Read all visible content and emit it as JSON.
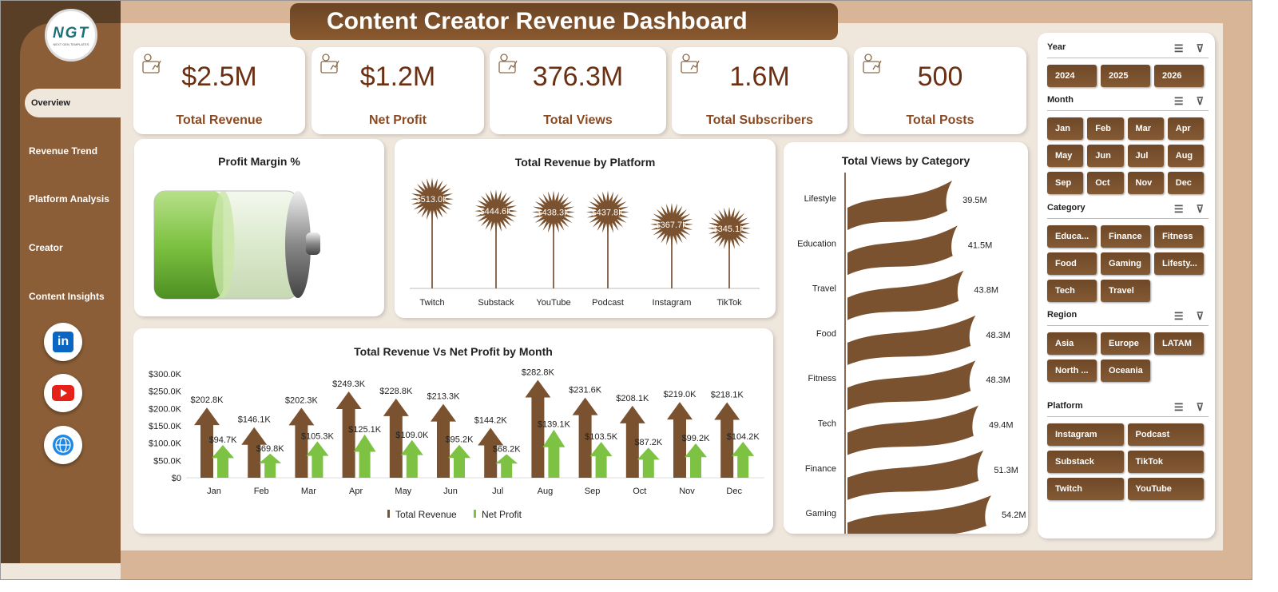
{
  "title": "Content Creator Revenue Dashboard",
  "logo": {
    "text": "NGT",
    "subtext": "NEXT GEN TEMPLATES"
  },
  "nav": [
    {
      "label": "Overview",
      "active": true
    },
    {
      "label": "Revenue Trend"
    },
    {
      "label": "Platform Analysis"
    },
    {
      "label": "Creator"
    },
    {
      "label": "Content Insights"
    }
  ],
  "social": [
    {
      "icon": "linkedin-icon",
      "label": "in",
      "color": "#0a66c2"
    },
    {
      "icon": "youtube-icon",
      "color": "#e62117"
    },
    {
      "icon": "globe-icon",
      "color": "#1e88e5"
    }
  ],
  "kpis": [
    {
      "value": "$2.5M",
      "label": "Total Revenue",
      "icon": "money-icon"
    },
    {
      "value": "$1.2M",
      "label": "Net Profit",
      "icon": "growth-chart-icon"
    },
    {
      "value": "376.3M",
      "label": "Total Views",
      "icon": "analytics-icon"
    },
    {
      "value": "1.6M",
      "label": "Total Subscribers",
      "icon": "clipboard-icon"
    },
    {
      "value": "500",
      "label": "Total Posts",
      "icon": "report-icon"
    }
  ],
  "profit_margin": {
    "title": "Profit Margin %",
    "fill_fraction": 0.48,
    "fill_color": "#7dc242"
  },
  "chart_data": [
    {
      "type": "bar",
      "title": "Total Revenue  by Platform",
      "categories": [
        "Twitch",
        "Substack",
        "YouTube",
        "Podcast",
        "Instagram",
        "TikTok"
      ],
      "values": [
        513.0,
        444.6,
        438.3,
        437.8,
        367.7,
        345.1
      ],
      "labels": [
        "$513.0K",
        "$444.6K",
        "$438.3K",
        "$437.8K",
        "$367.7K",
        "$345.1K"
      ],
      "unit": "K",
      "color": "#7a5230"
    },
    {
      "type": "bar",
      "orientation": "horizontal",
      "title": "Total Views by Category",
      "categories": [
        "Lifestyle",
        "Education",
        "Travel",
        "Food",
        "Fitness",
        "Tech",
        "Finance",
        "Gaming"
      ],
      "values": [
        39.5,
        41.5,
        43.8,
        48.3,
        48.3,
        49.4,
        51.3,
        54.2
      ],
      "labels": [
        "39.5M",
        "41.5M",
        "43.8M",
        "48.3M",
        "48.3M",
        "49.4M",
        "51.3M",
        "54.2M"
      ],
      "color": "#7a5230"
    },
    {
      "type": "bar",
      "title": "Total Revenue  Vs Net Profit  by Month",
      "categories": [
        "Jan",
        "Feb",
        "Mar",
        "Apr",
        "May",
        "Jun",
        "Jul",
        "Aug",
        "Sep",
        "Oct",
        "Nov",
        "Dec"
      ],
      "yticks": [
        "$0",
        "$50.0K",
        "$100.0K",
        "$150.0K",
        "$200.0K",
        "$250.0K",
        "$300.0K"
      ],
      "ylim": [
        0,
        300
      ],
      "legend": "bottom",
      "series": [
        {
          "name": "Total Revenue",
          "color": "#7a5230",
          "values": [
            202.8,
            146.1,
            202.3,
            249.3,
            228.8,
            213.3,
            144.2,
            282.8,
            231.6,
            208.1,
            219.0,
            218.1
          ],
          "labels": [
            "$202.8K",
            "$146.1K",
            "$202.3K",
            "$249.3K",
            "$228.8K",
            "$213.3K",
            "$144.2K",
            "$282.8K",
            "$231.6K",
            "$208.1K",
            "$219.0K",
            "$218.1K"
          ]
        },
        {
          "name": "Net Profit",
          "color": "#7dc242",
          "values": [
            94.7,
            69.8,
            105.3,
            125.1,
            109.0,
            95.2,
            68.2,
            139.1,
            103.5,
            87.2,
            99.2,
            104.2
          ],
          "labels": [
            "$94.7K",
            "$69.8K",
            "$105.3K",
            "$125.1K",
            "$109.0K",
            "$95.2K",
            "$68.2K",
            "$139.1K",
            "$103.5K",
            "$87.2K",
            "$99.2K",
            "$104.2K"
          ]
        }
      ]
    }
  ],
  "filters": [
    {
      "title": "Year",
      "cols": 3,
      "items": [
        "2024",
        "2025",
        "2026"
      ]
    },
    {
      "title": "Month",
      "cols": 4,
      "items": [
        "Jan",
        "Feb",
        "Mar",
        "Apr",
        "May",
        "Jun",
        "Jul",
        "Aug",
        "Sep",
        "Oct",
        "Nov",
        "Dec"
      ]
    },
    {
      "title": "Category",
      "cols": 3,
      "items": [
        "Educa...",
        "Finance",
        "Fitness",
        "Food",
        "Gaming",
        "Lifesty...",
        "Tech",
        "Travel"
      ]
    },
    {
      "title": "Region",
      "cols": 3,
      "items": [
        "Asia",
        "Europe",
        "LATAM",
        "North ...",
        "Oceania"
      ]
    },
    {
      "title": "Platform",
      "cols": 2,
      "items": [
        "Instagram",
        "Podcast",
        "Substack",
        "TikTok",
        "Twitch",
        "YouTube"
      ]
    }
  ],
  "filter_icons": {
    "multiselect": "☰",
    "clear": "⊽"
  }
}
